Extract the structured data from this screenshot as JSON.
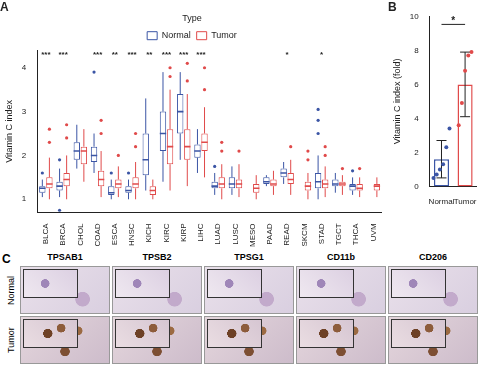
{
  "chart_data": [
    {
      "title": "A",
      "type": "boxplot",
      "y_label": "Vitamin C index",
      "legend_title": "Type",
      "legend": "top",
      "grid": false,
      "categories": [
        "BLCA",
        "BRCA",
        "CHOL",
        "COAD",
        "ESCA",
        "HNSC",
        "KICH",
        "KIRC",
        "KIRP",
        "LIHC",
        "LUAD",
        "LUSC",
        "MESO",
        "PAAD",
        "READ",
        "SKCM",
        "STAD",
        "TGCT",
        "THCA",
        "UVM"
      ],
      "series": [
        {
          "name": "Normal",
          "color": "#3b55a5",
          "values": [
            [
              1.05,
              1.15,
              1.25,
              1.3,
              1.45
            ],
            [
              1.05,
              1.2,
              1.3,
              1.4,
              1.7
            ],
            [
              1.7,
              1.9,
              2.1,
              2.3,
              2.7
            ],
            [
              1.6,
              1.85,
              2.0,
              2.2,
              2.5
            ],
            [
              1.0,
              1.1,
              1.15,
              1.3,
              1.45
            ],
            [
              1.0,
              1.15,
              1.2,
              1.3,
              1.45
            ],
            [
              1.2,
              1.55,
              1.9,
              2.5,
              3.3
            ],
            [
              1.4,
              2.1,
              2.5,
              3.0,
              3.9
            ],
            [
              1.9,
              2.5,
              3.0,
              3.4,
              3.9
            ],
            [
              1.6,
              1.95,
              2.1,
              2.25,
              2.6
            ],
            [
              1.1,
              1.25,
              1.3,
              1.4,
              1.6
            ],
            [
              1.1,
              1.25,
              1.35,
              1.5,
              1.75
            ],
            null,
            [
              1.3,
              1.35,
              1.4,
              1.5,
              1.55
            ],
            [
              1.35,
              1.5,
              1.6,
              1.7,
              1.85
            ],
            null,
            [
              1.0,
              1.25,
              1.4,
              1.6,
              2.0
            ],
            [
              1.15,
              1.3,
              1.35,
              1.45,
              1.6
            ],
            [
              1.1,
              1.2,
              1.3,
              1.35,
              1.5
            ],
            null
          ],
          "outliers": [
            [
              1.6
            ],
            [
              0.75,
              1.9
            ],
            [],
            [
              3.9
            ],
            [
              1.6
            ],
            [
              1.6
            ],
            [],
            [],
            [],
            [],
            [
              1.75
            ],
            [],
            [],
            [],
            [],
            [],
            [
              2.5,
              2.8,
              3.05
            ],
            [],
            [
              1.65
            ],
            []
          ]
        },
        {
          "name": "Tumor",
          "color": "#e04a4a",
          "values": [
            [
              1.0,
              1.25,
              1.35,
              1.5,
              1.95
            ],
            [
              1.0,
              1.3,
              1.45,
              1.6,
              2.0
            ],
            [
              1.4,
              1.8,
              2.1,
              2.2,
              2.6
            ],
            [
              1.05,
              1.3,
              1.45,
              1.65,
              2.1
            ],
            [
              1.05,
              1.25,
              1.35,
              1.45,
              1.75
            ],
            [
              1.0,
              1.25,
              1.35,
              1.5,
              1.85
            ],
            [
              1.0,
              1.1,
              1.2,
              1.3,
              1.45
            ],
            [
              1.2,
              1.8,
              2.2,
              2.6,
              3.5
            ],
            [
              1.3,
              1.9,
              2.2,
              2.6,
              3.4
            ],
            [
              1.5,
              2.1,
              2.3,
              2.5,
              3.1
            ],
            [
              1.0,
              1.25,
              1.35,
              1.5,
              1.8
            ],
            [
              1.05,
              1.25,
              1.35,
              1.45,
              1.8
            ],
            [
              1.0,
              1.15,
              1.25,
              1.35,
              1.55
            ],
            [
              1.1,
              1.3,
              1.35,
              1.45,
              1.65
            ],
            [
              1.1,
              1.35,
              1.45,
              1.6,
              1.9
            ],
            [
              1.0,
              1.2,
              1.3,
              1.4,
              1.6
            ],
            [
              1.05,
              1.25,
              1.35,
              1.45,
              1.75
            ],
            [
              1.1,
              1.3,
              1.35,
              1.4,
              1.55
            ],
            [
              1.05,
              1.2,
              1.25,
              1.35,
              1.5
            ],
            [
              1.05,
              1.2,
              1.3,
              1.35,
              1.5
            ]
          ],
          "outliers": [
            [
              2.3,
              2.6
            ],
            [
              2.4,
              2.7
            ],
            [],
            [
              2.5,
              2.8
            ],
            [
              2.0
            ],
            [
              2.2,
              2.5
            ],
            [],
            [
              3.8,
              4.0
            ],
            [
              3.7,
              4.1
            ],
            [
              3.5,
              4.0
            ],
            [
              2.1,
              2.3
            ],
            [
              2.1
            ],
            [],
            [],
            [
              2.2
            ],
            [
              1.9,
              2.1
            ],
            [
              2.0,
              2.2
            ],
            [
              1.7
            ],
            [
              1.7
            ],
            []
          ]
        }
      ],
      "ylim": [
        0.7,
        4.4
      ],
      "yticks": [
        1,
        2,
        3,
        4
      ],
      "annotations": [
        {
          "category": "BLCA",
          "text": "***"
        },
        {
          "category": "BRCA",
          "text": "***"
        },
        {
          "category": "COAD",
          "text": "***"
        },
        {
          "category": "ESCA",
          "text": "**"
        },
        {
          "category": "HNSC",
          "text": "***"
        },
        {
          "category": "KICH",
          "text": "**"
        },
        {
          "category": "KIRC",
          "text": "***"
        },
        {
          "category": "KIRP",
          "text": "***"
        },
        {
          "category": "LIHC",
          "text": "***"
        },
        {
          "category": "READ",
          "text": "*"
        },
        {
          "category": "STAD",
          "text": "*"
        }
      ]
    },
    {
      "title": "B",
      "type": "bar",
      "y_label": "Vitamin C index (fold)",
      "grid": false,
      "categories": [
        "Normal",
        "Tumor"
      ],
      "values": [
        1.6,
        6.0
      ],
      "errors": [
        1.1,
        1.9
      ],
      "points": [
        [
          0.5,
          0.7,
          1.0,
          1.3,
          2.3,
          3.4
        ],
        [
          3.6,
          4.9,
          6.8,
          7.7,
          7.9
        ]
      ],
      "colors": [
        "#3b55a5",
        "#e04a4a"
      ],
      "ylim": [
        0,
        10
      ],
      "yticks": [
        0,
        2,
        4,
        6,
        8,
        10
      ],
      "annotations": [
        {
          "text": "*"
        }
      ]
    }
  ],
  "panel_c": {
    "label": "C",
    "columns": [
      "TPSAB1",
      "TPSB2",
      "TPSG1",
      "CD11b",
      "CD206"
    ],
    "rows": [
      "Normal",
      "Tumor"
    ]
  }
}
